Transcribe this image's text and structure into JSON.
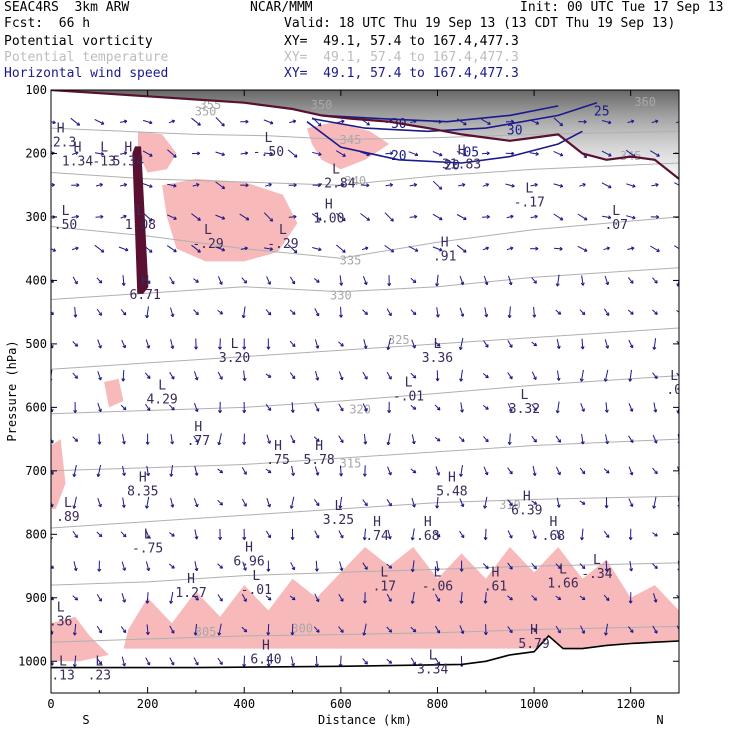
{
  "header": {
    "line1_left": "SEAC4RS  3km ARW",
    "line1_center": "NCAR/MMM",
    "line1_right": "Init: 00 UTC Tue 17 Sep 13",
    "line2_left": "Fcst:  66 h",
    "line2_right": "Valid: 18 UTC Thu 19 Sep 13 (13 CDT Thu 19 Sep 13)",
    "fields": [
      {
        "name": "Potential vorticity",
        "xy": "XY=  49.1, 57.4 to 167.4,477.3",
        "color": "#000000"
      },
      {
        "name": "Potential temperature",
        "xy": "XY=  49.1, 57.4 to 167.4,477.3",
        "color": "#bdbdbd"
      },
      {
        "name": "Horizontal wind speed",
        "xy": "XY=  49.1, 57.4 to 167.4,477.3",
        "color": "#1a1a8c"
      }
    ]
  },
  "colors": {
    "pv_shading": "#f7b9b9",
    "theta_contour": "#b0b0b0",
    "wind_contour": "#1a1a8c",
    "tropopause": "#5a1030",
    "terrain": "#000000",
    "stratosphere_shading": "#888888"
  },
  "chart_data": {
    "type": "cross-section",
    "xlabel": "Distance (km)",
    "ylabel": "Pressure (hPa)",
    "xlim": [
      0,
      1300
    ],
    "ylim": [
      1050,
      100
    ],
    "x_ticks": [
      "0",
      "200",
      "400",
      "600",
      "800",
      "1000",
      "1200"
    ],
    "x_tick_values": [
      0,
      200,
      400,
      600,
      800,
      1000,
      1200
    ],
    "y_ticks": [
      "100",
      "200",
      "300",
      "400",
      "500",
      "600",
      "700",
      "800",
      "900",
      "1000"
    ],
    "y_tick_values": [
      100,
      200,
      300,
      400,
      500,
      600,
      700,
      800,
      900,
      1000
    ],
    "end_labels": {
      "start": "S",
      "end": "N"
    },
    "theta_contours": [
      {
        "label": "345",
        "points": [
          [
            0,
            160
          ],
          [
            150,
            165
          ],
          [
            300,
            170
          ],
          [
            450,
            172
          ],
          [
            600,
            178
          ],
          [
            800,
            175
          ],
          [
            1000,
            170
          ],
          [
            1300,
            165
          ]
        ],
        "label_at": [
          620,
          185
        ]
      },
      {
        "label": "340",
        "points": [
          [
            0,
            230
          ],
          [
            200,
            240
          ],
          [
            400,
            245
          ],
          [
            600,
            250
          ],
          [
            800,
            235
          ],
          [
            1000,
            225
          ],
          [
            1300,
            215
          ]
        ],
        "label_at": [
          630,
          250
        ]
      },
      {
        "label": "335",
        "points": [
          [
            0,
            315
          ],
          [
            200,
            330
          ],
          [
            400,
            350
          ],
          [
            600,
            365
          ],
          [
            800,
            340
          ],
          [
            1000,
            320
          ],
          [
            1300,
            300
          ]
        ],
        "label_at": [
          620,
          375
        ]
      },
      {
        "label": "330",
        "points": [
          [
            0,
            430
          ],
          [
            200,
            420
          ],
          [
            400,
            410
          ],
          [
            600,
            418
          ],
          [
            800,
            410
          ],
          [
            1000,
            395
          ],
          [
            1300,
            380
          ]
        ],
        "label_at": [
          600,
          430
        ]
      },
      {
        "label": "325",
        "points": [
          [
            0,
            540
          ],
          [
            200,
            530
          ],
          [
            400,
            520
          ],
          [
            600,
            510
          ],
          [
            800,
            500
          ],
          [
            1000,
            490
          ],
          [
            1300,
            475
          ]
        ],
        "label_at": [
          720,
          500
        ]
      },
      {
        "label": "320",
        "points": [
          [
            0,
            610
          ],
          [
            200,
            605
          ],
          [
            400,
            600
          ],
          [
            600,
            590
          ],
          [
            800,
            578
          ],
          [
            1000,
            565
          ],
          [
            1300,
            550
          ]
        ],
        "label_at": [
          640,
          610
        ]
      },
      {
        "label": "315",
        "points": [
          [
            0,
            700
          ],
          [
            200,
            695
          ],
          [
            400,
            690
          ],
          [
            600,
            680
          ],
          [
            800,
            670
          ],
          [
            1000,
            660
          ],
          [
            1300,
            650
          ]
        ],
        "label_at": [
          620,
          695
        ]
      },
      {
        "label": "310",
        "points": [
          [
            0,
            790
          ],
          [
            200,
            780
          ],
          [
            400,
            770
          ],
          [
            600,
            760
          ],
          [
            800,
            750
          ],
          [
            1000,
            745
          ],
          [
            1300,
            740
          ]
        ],
        "label_at": [
          950,
          760
        ]
      },
      {
        "label": "305",
        "points": [
          [
            0,
            880
          ],
          [
            200,
            875
          ],
          [
            400,
            865
          ],
          [
            600,
            860
          ],
          [
            800,
            855
          ],
          [
            1000,
            850
          ],
          [
            1300,
            845
          ]
        ],
        "label_at": [
          320,
          960
        ]
      },
      {
        "label": "300",
        "points": [
          [
            0,
            970
          ],
          [
            200,
            965
          ],
          [
            400,
            960
          ],
          [
            600,
            958
          ],
          [
            800,
            955
          ],
          [
            1000,
            950
          ],
          [
            1300,
            945
          ]
        ],
        "label_at": [
          520,
          955
        ]
      }
    ],
    "theta_label_extras": [
      {
        "label": "350",
        "at": [
          320,
          140
        ]
      },
      {
        "label": "355",
        "at": [
          330,
          130
        ]
      },
      {
        "label": "350",
        "at": [
          560,
          130
        ]
      },
      {
        "label": "345",
        "at": [
          1200,
          210
        ]
      },
      {
        "label": "360",
        "at": [
          1230,
          125
        ]
      }
    ],
    "wind_speed_contours": [
      {
        "label": "20",
        "points": [
          [
            530,
            150
          ],
          [
            600,
            190
          ],
          [
            720,
            210
          ],
          [
            850,
            215
          ],
          [
            950,
            205
          ],
          [
            1050,
            185
          ],
          [
            1100,
            165
          ]
        ]
      },
      {
        "label": "25",
        "points": [
          [
            540,
            145
          ],
          [
            650,
            160
          ],
          [
            780,
            165
          ],
          [
            900,
            160
          ],
          [
            1050,
            140
          ],
          [
            1130,
            120
          ]
        ]
      },
      {
        "label": "30",
        "points": [
          [
            560,
            140
          ],
          [
            680,
            145
          ],
          [
            820,
            150
          ],
          [
            950,
            140
          ],
          [
            1050,
            125
          ]
        ]
      }
    ],
    "wind_speed_labels": [
      {
        "label": "20",
        "at": [
          720,
          210
        ]
      },
      {
        "label": "20",
        "at": [
          830,
          225
        ]
      },
      {
        "label": "25",
        "at": [
          1140,
          140
        ]
      },
      {
        "label": "30",
        "at": [
          720,
          160
        ]
      },
      {
        "label": "30",
        "at": [
          960,
          170
        ]
      },
      {
        "label": "05",
        "at": [
          870,
          205
        ]
      }
    ],
    "pv_extrema": [
      {
        "type": "H",
        "value": "12.3",
        "x": 20,
        "p": 170
      },
      {
        "type": "H",
        "value": "1.34",
        "x": 55,
        "p": 200
      },
      {
        "type": "L",
        "value": "-13",
        "x": 110,
        "p": 200
      },
      {
        "type": "H",
        "value": "5.34",
        "x": 160,
        "p": 200
      },
      {
        "type": "L",
        "value": ".50",
        "x": 30,
        "p": 300
      },
      {
        "type": "L",
        "value": "1.08",
        "x": 185,
        "p": 300
      },
      {
        "type": "L",
        "value": "-.29",
        "x": 325,
        "p": 330
      },
      {
        "type": "L",
        "value": "-.29",
        "x": 480,
        "p": 330
      },
      {
        "type": "L",
        "value": "-.50",
        "x": 450,
        "p": 185
      },
      {
        "type": "H",
        "value": "1.00",
        "x": 575,
        "p": 290
      },
      {
        "type": "L",
        "value": "-2.84",
        "x": 590,
        "p": 235
      },
      {
        "type": "H",
        "value": "31.83",
        "x": 850,
        "p": 205
      },
      {
        "type": "L",
        "value": "-.17",
        "x": 990,
        "p": 265
      },
      {
        "type": "H",
        "value": ".91",
        "x": 815,
        "p": 350
      },
      {
        "type": "L",
        "value": ".07",
        "x": 1170,
        "p": 300
      },
      {
        "type": "H",
        "value": "6.71",
        "x": 195,
        "p": 410
      },
      {
        "type": "L",
        "value": "3.20",
        "x": 380,
        "p": 510
      },
      {
        "type": "L",
        "value": "3.36",
        "x": 800,
        "p": 510
      },
      {
        "type": "L",
        "value": "-.01",
        "x": 740,
        "p": 570
      },
      {
        "type": "L",
        "value": "3.32",
        "x": 980,
        "p": 590
      },
      {
        "type": "L",
        "value": ".0",
        "x": 1290,
        "p": 560
      },
      {
        "type": "L",
        "value": "4.29",
        "x": 230,
        "p": 575
      },
      {
        "type": "H",
        "value": ".77",
        "x": 305,
        "p": 640
      },
      {
        "type": "H",
        "value": ".75",
        "x": 470,
        "p": 670
      },
      {
        "type": "H",
        "value": "5.78",
        "x": 555,
        "p": 670
      },
      {
        "type": "H",
        "value": "5.48",
        "x": 830,
        "p": 720
      },
      {
        "type": "H",
        "value": "8.35",
        "x": 190,
        "p": 720
      },
      {
        "type": "H",
        "value": "6.39",
        "x": 985,
        "p": 750
      },
      {
        "type": "L",
        "value": ".89",
        "x": 35,
        "p": 760
      },
      {
        "type": "L",
        "value": "3.25",
        "x": 595,
        "p": 765
      },
      {
        "type": "H",
        "value": ".74",
        "x": 675,
        "p": 790
      },
      {
        "type": "H",
        "value": ".68",
        "x": 780,
        "p": 790
      },
      {
        "type": "H",
        "value": ".68",
        "x": 1040,
        "p": 790
      },
      {
        "type": "L",
        "value": "-.75",
        "x": 200,
        "p": 810
      },
      {
        "type": "H",
        "value": "6.96",
        "x": 410,
        "p": 830
      },
      {
        "type": "H",
        "value": "1.27",
        "x": 290,
        "p": 880
      },
      {
        "type": "L",
        "value": "-.01",
        "x": 425,
        "p": 875
      },
      {
        "type": "L",
        "value": ".17",
        "x": 690,
        "p": 870
      },
      {
        "type": "L",
        "value": "-.06",
        "x": 800,
        "p": 870
      },
      {
        "type": "H",
        "value": ".61",
        "x": 920,
        "p": 870
      },
      {
        "type": "L",
        "value": "1.66",
        "x": 1060,
        "p": 865
      },
      {
        "type": "L",
        "value": "-.34",
        "x": 1130,
        "p": 850
      },
      {
        "type": "L",
        "value": ".36",
        "x": 20,
        "p": 925
      },
      {
        "type": "H",
        "value": "5.79",
        "x": 1000,
        "p": 960
      },
      {
        "type": "H",
        "value": "6.40",
        "x": 445,
        "p": 985
      },
      {
        "type": "L",
        "value": "3.34",
        "x": 790,
        "p": 1000
      },
      {
        "type": "L",
        "value": ".13",
        "x": 25,
        "p": 1010
      },
      {
        "type": "L",
        "value": ".23",
        "x": 100,
        "p": 1010
      }
    ],
    "pv_shading_regions": [
      [
        [
          230,
          250
        ],
        [
          300,
          240
        ],
        [
          400,
          245
        ],
        [
          480,
          265
        ],
        [
          510,
          310
        ],
        [
          470,
          355
        ],
        [
          400,
          370
        ],
        [
          320,
          370
        ],
        [
          260,
          350
        ],
        [
          240,
          300
        ]
      ],
      [
        [
          530,
          160
        ],
        [
          590,
          150
        ],
        [
          660,
          165
        ],
        [
          700,
          185
        ],
        [
          650,
          210
        ],
        [
          600,
          225
        ],
        [
          560,
          210
        ],
        [
          540,
          185
        ]
      ],
      [
        [
          180,
          165
        ],
        [
          230,
          170
        ],
        [
          260,
          200
        ],
        [
          240,
          225
        ],
        [
          200,
          230
        ],
        [
          180,
          200
        ]
      ],
      [
        [
          150,
          980
        ],
        [
          1300,
          980
        ],
        [
          1300,
          920
        ],
        [
          1250,
          880
        ],
        [
          1200,
          900
        ],
        [
          1150,
          840
        ],
        [
          1100,
          870
        ],
        [
          1050,
          820
        ],
        [
          1000,
          860
        ],
        [
          950,
          820
        ],
        [
          900,
          870
        ],
        [
          850,
          830
        ],
        [
          800,
          870
        ],
        [
          750,
          820
        ],
        [
          700,
          850
        ],
        [
          650,
          820
        ],
        [
          600,
          860
        ],
        [
          550,
          900
        ],
        [
          500,
          870
        ],
        [
          450,
          920
        ],
        [
          400,
          880
        ],
        [
          350,
          930
        ],
        [
          300,
          890
        ],
        [
          250,
          940
        ],
        [
          200,
          900
        ],
        [
          160,
          950
        ]
      ],
      [
        [
          0,
          940
        ],
        [
          50,
          930
        ],
        [
          80,
          960
        ],
        [
          120,
          990
        ],
        [
          60,
          1000
        ],
        [
          0,
          1000
        ]
      ],
      [
        [
          0,
          660
        ],
        [
          20,
          650
        ],
        [
          30,
          720
        ],
        [
          10,
          760
        ],
        [
          0,
          760
        ]
      ],
      [
        [
          110,
          560
        ],
        [
          140,
          555
        ],
        [
          150,
          590
        ],
        [
          120,
          600
        ]
      ]
    ],
    "tropopause": [
      [
        0,
        100
      ],
      [
        100,
        105
      ],
      [
        200,
        110
      ],
      [
        300,
        115
      ],
      [
        400,
        120
      ],
      [
        500,
        130
      ],
      [
        560,
        140
      ],
      [
        620,
        145
      ],
      [
        700,
        150
      ],
      [
        780,
        160
      ],
      [
        850,
        170
      ],
      [
        900,
        175
      ],
      [
        950,
        180
      ],
      [
        1000,
        175
      ],
      [
        1050,
        170
      ],
      [
        1100,
        200
      ],
      [
        1150,
        210
      ],
      [
        1200,
        205
      ],
      [
        1250,
        210
      ],
      [
        1300,
        240
      ]
    ],
    "pv_tower": [
      [
        175,
        190
      ],
      [
        185,
        190
      ],
      [
        200,
        410
      ],
      [
        190,
        420
      ],
      [
        180,
        420
      ],
      [
        170,
        200
      ]
    ],
    "terrain": [
      [
        0,
        1010
      ],
      [
        300,
        1010
      ],
      [
        600,
        1008
      ],
      [
        850,
        1005
      ],
      [
        900,
        1000
      ],
      [
        950,
        990
      ],
      [
        1000,
        985
      ],
      [
        1030,
        960
      ],
      [
        1060,
        980
      ],
      [
        1100,
        980
      ],
      [
        1150,
        975
      ],
      [
        1200,
        972
      ],
      [
        1250,
        970
      ],
      [
        1300,
        968
      ]
    ]
  }
}
